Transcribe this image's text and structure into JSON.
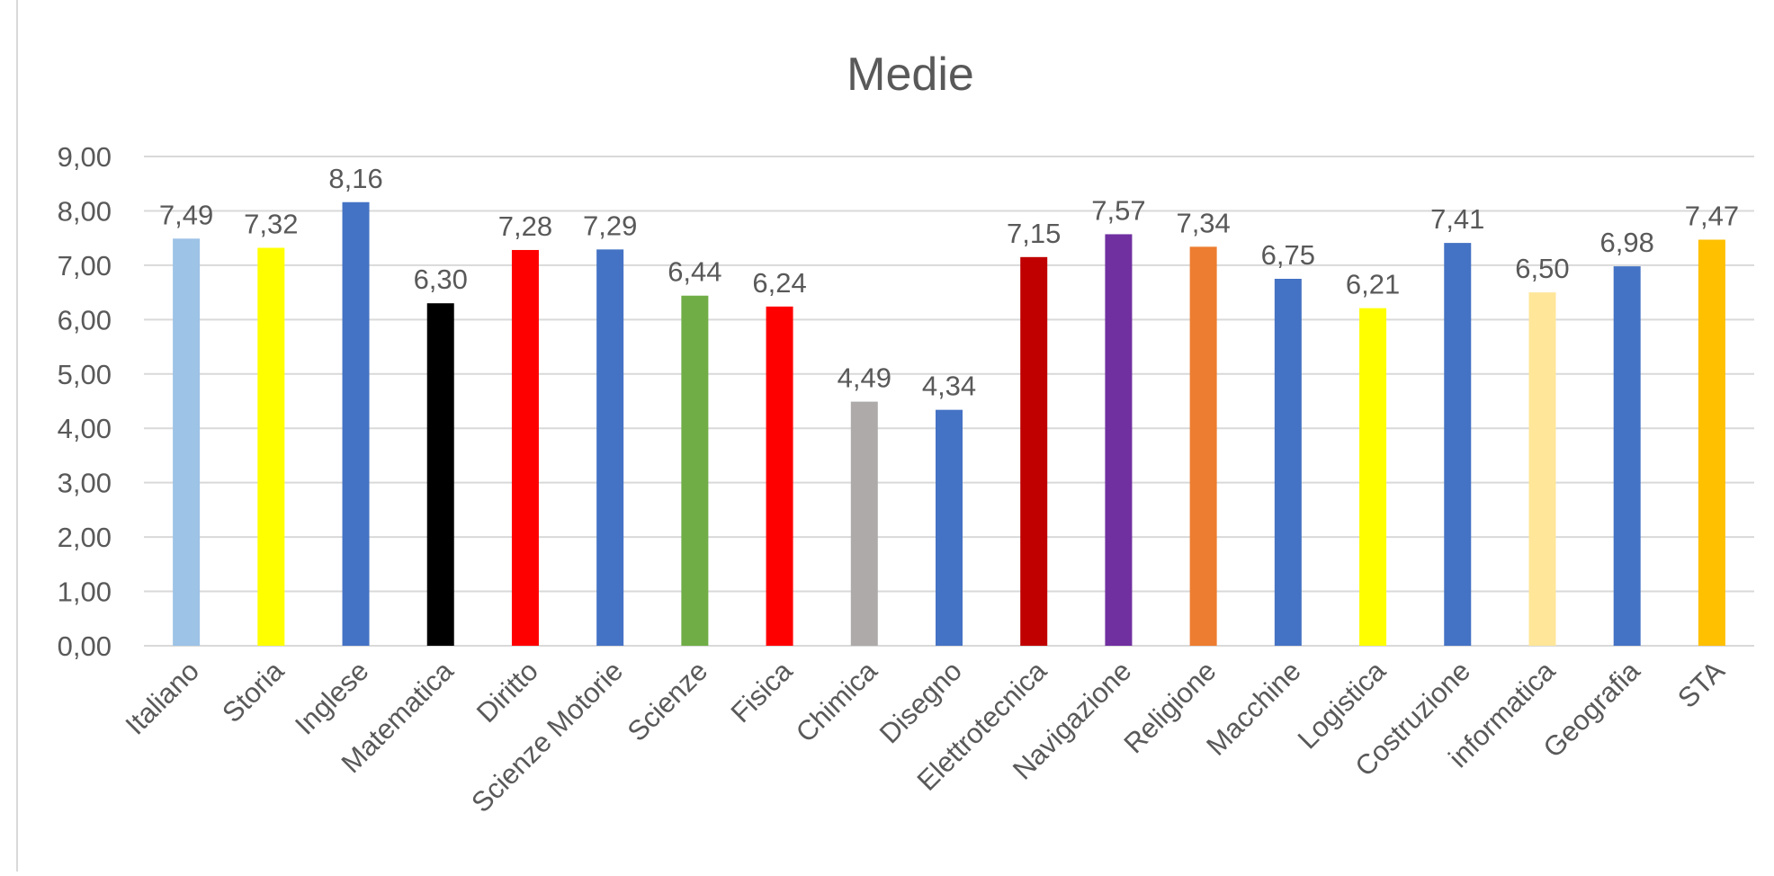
{
  "chart_data": {
    "type": "bar",
    "title": "Medie",
    "xlabel": "",
    "ylabel": "",
    "ylim": [
      0,
      9
    ],
    "yticks": [
      "0,00",
      "1,00",
      "2,00",
      "3,00",
      "4,00",
      "5,00",
      "6,00",
      "7,00",
      "8,00",
      "9,00"
    ],
    "grid": true,
    "legend": "none",
    "categories": [
      "Italiano",
      "Storia",
      "Inglese",
      "Matematica",
      "Diritto",
      "Scienze Motorie",
      "Scienze",
      "Fisica",
      "Chimica",
      "Disegno",
      "Elettrotecnica",
      "Navigazione",
      "Religione",
      "Macchine",
      "Logistica",
      "Costruzione",
      "informatica",
      "Geografia",
      "STA"
    ],
    "values": [
      7.49,
      7.32,
      8.16,
      6.3,
      7.28,
      7.29,
      6.44,
      6.24,
      4.49,
      4.34,
      7.15,
      7.57,
      7.34,
      6.75,
      6.21,
      7.41,
      6.5,
      6.98,
      7.47
    ],
    "value_labels": [
      "7,49",
      "7,32",
      "8,16",
      "6,30",
      "7,28",
      "7,29",
      "6,44",
      "6,24",
      "4,49",
      "4,34",
      "7,15",
      "7,57",
      "7,34",
      "6,75",
      "6,21",
      "7,41",
      "6,50",
      "6,98",
      "7,47"
    ],
    "colors": [
      "#9dc3e6",
      "#ffff00",
      "#4472c4",
      "#000000",
      "#ff0000",
      "#4472c4",
      "#70ad47",
      "#ff0000",
      "#aeaaaa",
      "#4472c4",
      "#c00000",
      "#7030a0",
      "#ed7d31",
      "#4472c4",
      "#ffff00",
      "#4472c4",
      "#ffe699",
      "#4472c4",
      "#ffc000"
    ],
    "text_color": "#595959",
    "grid_color": "#d9d9d9"
  }
}
